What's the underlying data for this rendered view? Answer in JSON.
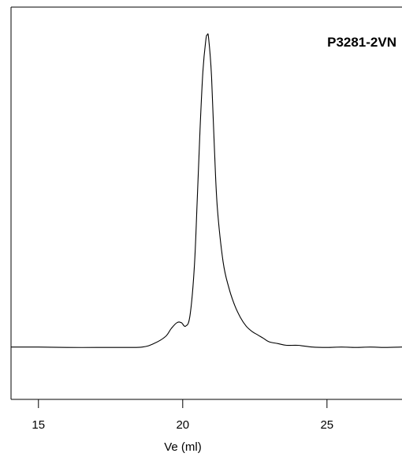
{
  "chart_data": {
    "type": "line",
    "title": "P3281-2VN",
    "xlabel": "Ve (ml)",
    "ylabel": "",
    "xlim": [
      14.05,
      27.6
    ],
    "ylim": [
      0,
      1
    ],
    "x_ticks": [
      15,
      20,
      25
    ],
    "x_tick_labels": [
      "15",
      "20",
      "25"
    ],
    "grid": false,
    "legend": "none",
    "line_color": "#000000",
    "series": [
      {
        "x": [
          14.05,
          15.0,
          16.0,
          17.0,
          18.0,
          18.6,
          19.0,
          19.4,
          19.6,
          19.8,
          19.95,
          20.1,
          20.25,
          20.4,
          20.5,
          20.6,
          20.7,
          20.8,
          20.85,
          20.9,
          21.0,
          21.1,
          21.2,
          21.4,
          21.6,
          21.8,
          22.0,
          22.2,
          22.4,
          22.6,
          22.8,
          23.0,
          23.3,
          23.6,
          24.0,
          24.5,
          25.0,
          25.5,
          26.0,
          26.5,
          27.0,
          27.6
        ],
        "y": [
          0.1333,
          0.1333,
          0.1324,
          0.1324,
          0.1324,
          0.1333,
          0.1422,
          0.16,
          0.1804,
          0.1956,
          0.1956,
          0.1867,
          0.2133,
          0.3333,
          0.5022,
          0.6889,
          0.8356,
          0.9156,
          0.9289,
          0.92,
          0.8222,
          0.6356,
          0.4889,
          0.3511,
          0.2844,
          0.24,
          0.2089,
          0.1867,
          0.1733,
          0.1644,
          0.1556,
          0.1467,
          0.1422,
          0.1378,
          0.1378,
          0.1333,
          0.1324,
          0.1333,
          0.1324,
          0.1333,
          0.1324,
          0.1333
        ]
      }
    ]
  }
}
